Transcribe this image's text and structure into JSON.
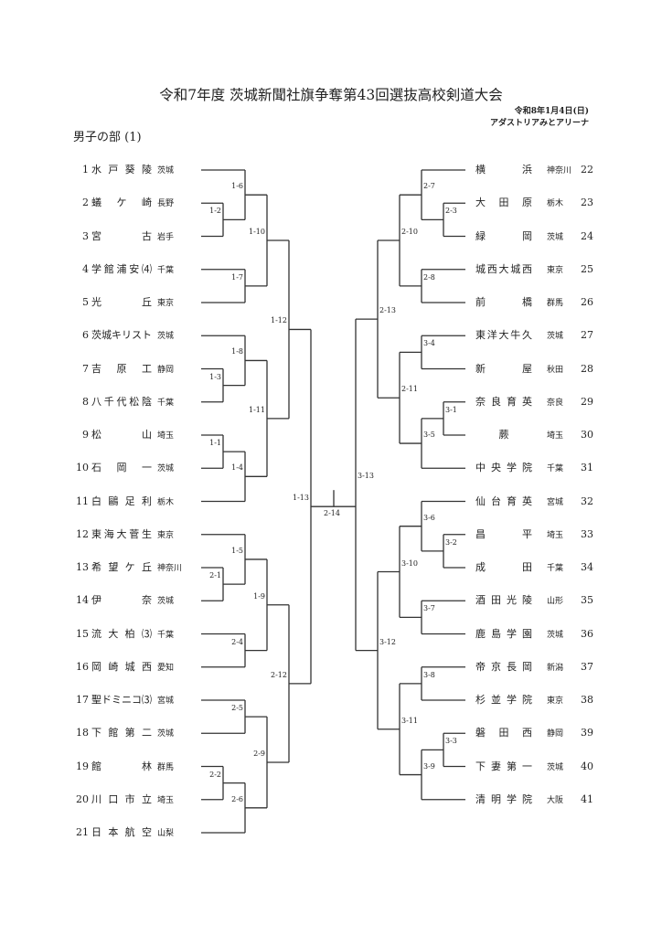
{
  "header": {
    "title": "令和7年度 茨城新聞社旗争奪第43回選抜高校剣道大会",
    "date": "令和8年1月4日(日)",
    "venue": "アダストリアみとアリーナ",
    "section": "男子の部 (1)"
  },
  "teams_left": [
    {
      "no": "1",
      "name": "水戸葵陵",
      "pref": "茨城"
    },
    {
      "no": "2",
      "name": "蟻ケ崎",
      "pref": "長野"
    },
    {
      "no": "3",
      "name": "宮古",
      "pref": "岩手"
    },
    {
      "no": "4",
      "name": "学館浦安⑷",
      "pref": "千葉"
    },
    {
      "no": "5",
      "name": "光丘",
      "pref": "東京"
    },
    {
      "no": "6",
      "name": "茨城キリスト",
      "pref": "茨城"
    },
    {
      "no": "7",
      "name": "吉原工",
      "pref": "静岡"
    },
    {
      "no": "8",
      "name": "八千代松陰",
      "pref": "千葉"
    },
    {
      "no": "9",
      "name": "松山",
      "pref": "埼玉"
    },
    {
      "no": "10",
      "name": "石岡一",
      "pref": "茨城"
    },
    {
      "no": "11",
      "name": "白鷗足利",
      "pref": "栃木"
    },
    {
      "no": "12",
      "name": "東海大菅生",
      "pref": "東京"
    },
    {
      "no": "13",
      "name": "希望ケ丘",
      "pref": "神奈川"
    },
    {
      "no": "14",
      "name": "伊奈",
      "pref": "茨城"
    },
    {
      "no": "15",
      "name": "流大柏⑶",
      "pref": "千葉"
    },
    {
      "no": "16",
      "name": "岡崎城西",
      "pref": "愛知"
    },
    {
      "no": "17",
      "name": "聖ドミニコ⑶",
      "pref": "宮城"
    },
    {
      "no": "18",
      "name": "下館第二",
      "pref": "茨城"
    },
    {
      "no": "19",
      "name": "館林",
      "pref": "群馬"
    },
    {
      "no": "20",
      "name": "川口市立",
      "pref": "埼玉"
    },
    {
      "no": "21",
      "name": "日本航空",
      "pref": "山梨"
    }
  ],
  "teams_right": [
    {
      "no": "22",
      "name": "横浜",
      "pref": "神奈川"
    },
    {
      "no": "23",
      "name": "大田原",
      "pref": "栃木"
    },
    {
      "no": "24",
      "name": "緑岡",
      "pref": "茨城"
    },
    {
      "no": "25",
      "name": "城西大城西",
      "pref": "東京"
    },
    {
      "no": "26",
      "name": "前橋",
      "pref": "群馬"
    },
    {
      "no": "27",
      "name": "東洋大牛久",
      "pref": "茨城"
    },
    {
      "no": "28",
      "name": "新屋",
      "pref": "秋田"
    },
    {
      "no": "29",
      "name": "奈良育英",
      "pref": "奈良"
    },
    {
      "no": "30",
      "name": "蕨",
      "pref": "埼玉"
    },
    {
      "no": "31",
      "name": "中央学院",
      "pref": "千葉"
    },
    {
      "no": "32",
      "name": "仙台育英",
      "pref": "宮城"
    },
    {
      "no": "33",
      "name": "昌平",
      "pref": "埼玉"
    },
    {
      "no": "34",
      "name": "成田",
      "pref": "千葉"
    },
    {
      "no": "35",
      "name": "酒田光陵",
      "pref": "山形"
    },
    {
      "no": "36",
      "name": "鹿島学園",
      "pref": "茨城"
    },
    {
      "no": "37",
      "name": "帝京長岡",
      "pref": "新潟"
    },
    {
      "no": "38",
      "name": "杉並学院",
      "pref": "東京"
    },
    {
      "no": "39",
      "name": "磐田西",
      "pref": "静岡"
    },
    {
      "no": "40",
      "name": "下妻第一",
      "pref": "茨城"
    },
    {
      "no": "41",
      "name": "清明学院",
      "pref": "大阪"
    }
  ],
  "bracket_left": {
    "label": "1-13",
    "c": [
      {
        "label": "1-12",
        "c": [
          {
            "label": "1-10",
            "c": [
              {
                "label": "1-6",
                "c": [
                  1,
                  {
                    "label": "1-2",
                    "c": [
                      2,
                      3
                    ]
                  }
                ]
              },
              {
                "label": "1-7",
                "c": [
                  4,
                  5
                ]
              }
            ]
          },
          {
            "label": "1-11",
            "c": [
              {
                "label": "1-8",
                "c": [
                  6,
                  {
                    "label": "1-3",
                    "c": [
                      7,
                      8
                    ]
                  }
                ]
              },
              {
                "label": "1-4",
                "c": [
                  {
                    "label": "1-1",
                    "c": [
                      9,
                      10
                    ]
                  },
                  11
                ]
              }
            ]
          }
        ]
      },
      {
        "label": "2-12",
        "c": [
          {
            "label": "1-9",
            "c": [
              {
                "label": "1-5",
                "c": [
                  12,
                  {
                    "label": "2-1",
                    "c": [
                      13,
                      14
                    ]
                  }
                ]
              },
              {
                "label": "2-4",
                "c": [
                  15,
                  16
                ]
              }
            ]
          },
          {
            "label": "2-9",
            "c": [
              {
                "label": "2-5",
                "c": [
                  17,
                  18
                ]
              },
              {
                "label": "2-6",
                "c": [
                  {
                    "label": "2-2",
                    "c": [
                      19,
                      20
                    ]
                  },
                  21
                ]
              }
            ]
          }
        ]
      }
    ]
  },
  "bracket_right": {
    "label": "3-13",
    "c": [
      {
        "label": "2-13",
        "c": [
          {
            "label": "2-10",
            "c": [
              {
                "label": "2-7",
                "c": [
                  22,
                  {
                    "label": "2-3",
                    "c": [
                      23,
                      24
                    ]
                  }
                ]
              },
              {
                "label": "2-8",
                "c": [
                  25,
                  26
                ]
              }
            ]
          },
          {
            "label": "2-11",
            "c": [
              {
                "label": "3-4",
                "c": [
                  27,
                  28
                ]
              },
              {
                "label": "3-5",
                "c": [
                  {
                    "label": "3-1",
                    "c": [
                      29,
                      30
                    ]
                  },
                  31
                ]
              }
            ]
          }
        ]
      },
      {
        "label": "3-12",
        "c": [
          {
            "label": "3-10",
            "c": [
              {
                "label": "3-6",
                "c": [
                  32,
                  {
                    "label": "3-2",
                    "c": [
                      33,
                      34
                    ]
                  }
                ]
              },
              {
                "label": "3-7",
                "c": [
                  35,
                  36
                ]
              }
            ]
          },
          {
            "label": "3-11",
            "c": [
              {
                "label": "3-8",
                "c": [
                  37,
                  38
                ]
              },
              {
                "label": "3-9",
                "c": [
                  {
                    "label": "3-3",
                    "c": [
                      39,
                      40
                    ]
                  },
                  41
                ]
              }
            ]
          }
        ]
      }
    ]
  },
  "final": {
    "label": "2-14"
  }
}
